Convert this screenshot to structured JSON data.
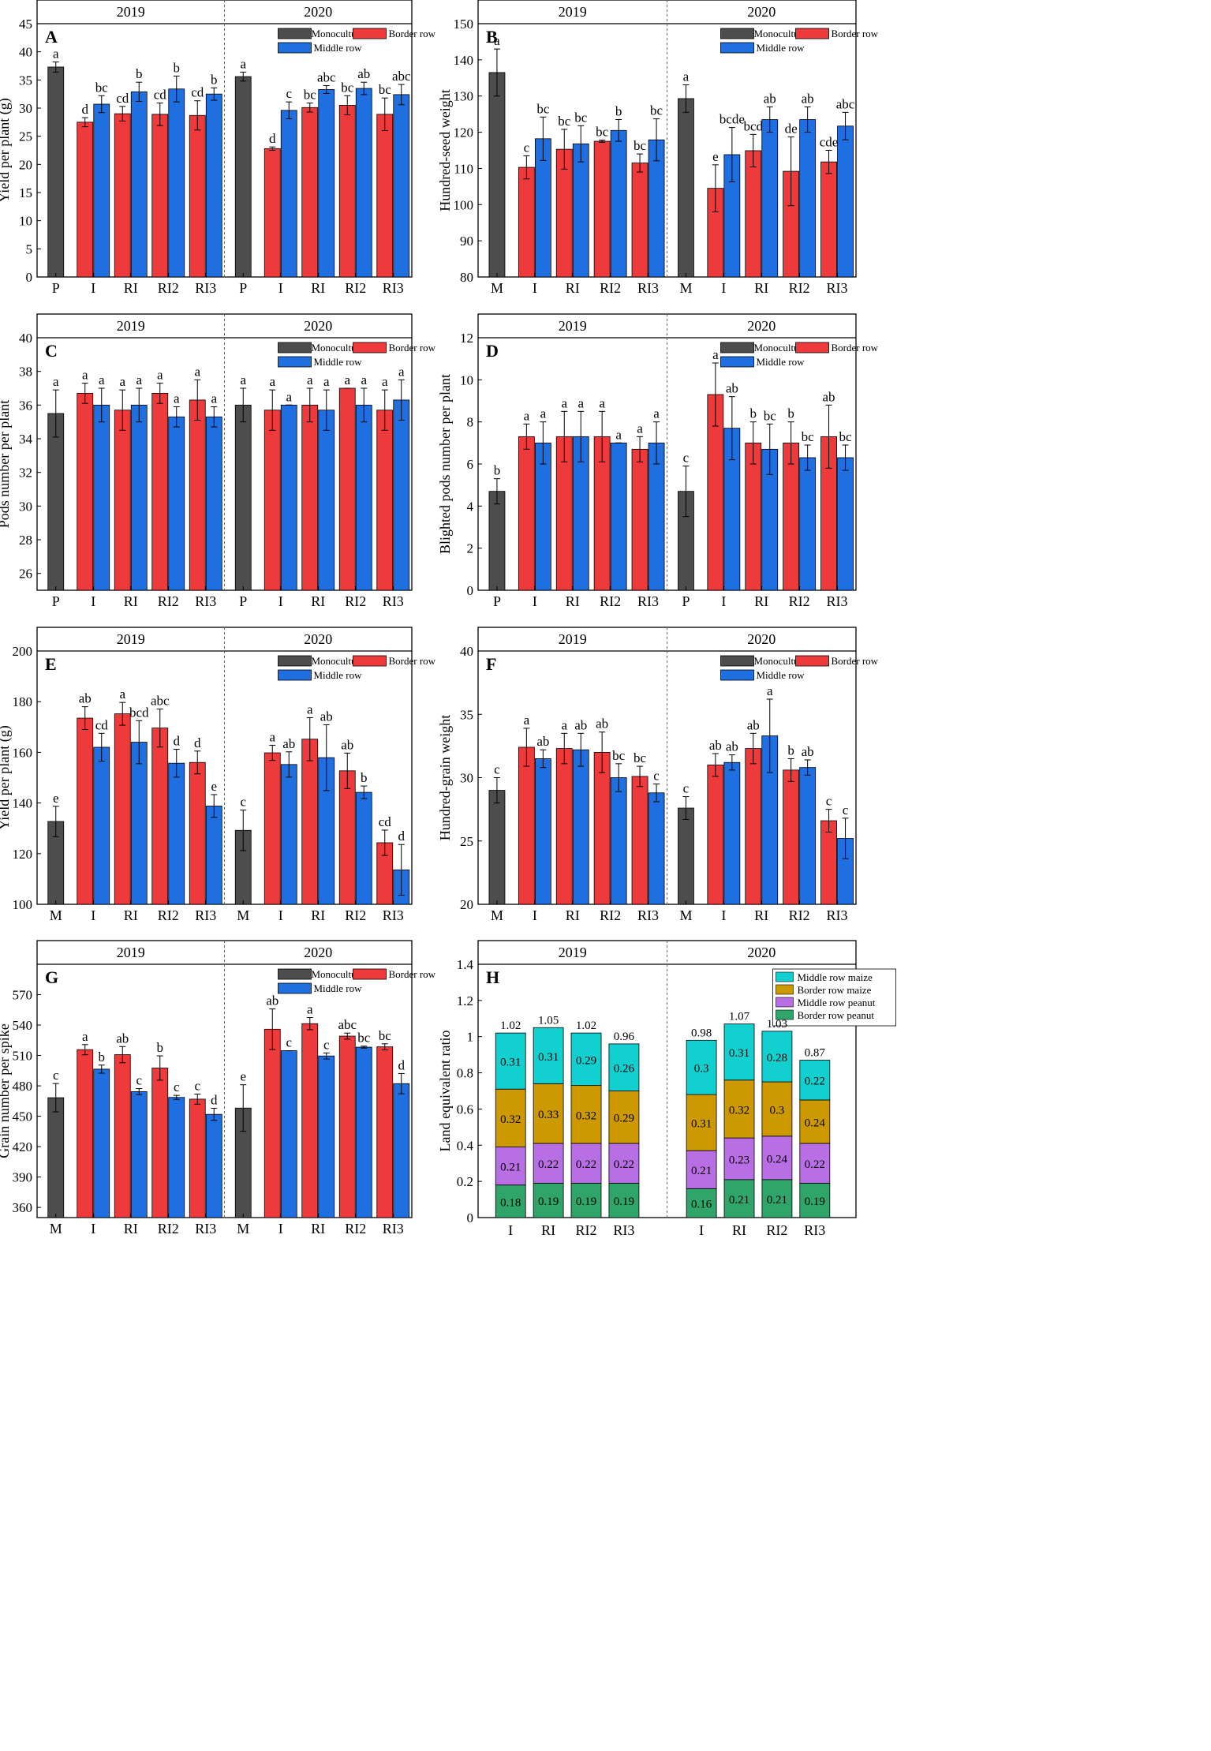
{
  "colors": {
    "monoculture": "#4d4d4d",
    "border": "#ee3a3a",
    "middle": "#1f6fe0",
    "ler_middle_maize": "#11d0cf",
    "ler_border_maize": "#cc9900",
    "ler_middle_peanut": "#b86fe3",
    "ler_border_peanut": "#2fa56a"
  },
  "legend_labels": {
    "monoculture": "Monoculture",
    "border": "Border row",
    "middle": "Middle row"
  },
  "chart_data": [
    {
      "panel": "A",
      "type": "bar",
      "ylabel": "Yield per plant (g)",
      "ylim": [
        0,
        45
      ],
      "yticks": [
        0,
        5,
        10,
        15,
        20,
        25,
        30,
        35,
        40,
        45
      ],
      "years": [
        "2019",
        "2020"
      ],
      "categories": [
        "P",
        "I",
        "RI",
        "RI2",
        "RI3"
      ],
      "data": {
        "2019": {
          "mono": {
            "v": 37.3,
            "e": 0.9,
            "l": "a"
          },
          "border": [
            {
              "v": 27.5,
              "e": 0.8,
              "l": "d"
            },
            {
              "v": 29.0,
              "e": 1.3,
              "l": "cd"
            },
            {
              "v": 28.9,
              "e": 2.0,
              "l": "cd"
            },
            {
              "v": 28.7,
              "e": 2.6,
              "l": "cd"
            }
          ],
          "middle": [
            {
              "v": 30.7,
              "e": 1.5,
              "l": "bc"
            },
            {
              "v": 32.9,
              "e": 1.7,
              "l": "b"
            },
            {
              "v": 33.4,
              "e": 2.3,
              "l": "b"
            },
            {
              "v": 32.5,
              "e": 1.1,
              "l": "b"
            }
          ]
        },
        "2020": {
          "mono": {
            "v": 35.6,
            "e": 0.8,
            "l": "a"
          },
          "border": [
            {
              "v": 22.8,
              "e": 0.3,
              "l": "d"
            },
            {
              "v": 30.1,
              "e": 0.8,
              "l": "bc"
            },
            {
              "v": 30.5,
              "e": 1.7,
              "l": "bc"
            },
            {
              "v": 28.9,
              "e": 2.9,
              "l": "bc"
            }
          ],
          "middle": [
            {
              "v": 29.6,
              "e": 1.5,
              "l": "c"
            },
            {
              "v": 33.3,
              "e": 0.7,
              "l": "abc"
            },
            {
              "v": 33.5,
              "e": 1.1,
              "l": "ab"
            },
            {
              "v": 32.4,
              "e": 1.8,
              "l": "abc"
            }
          ]
        }
      }
    },
    {
      "panel": "B",
      "type": "bar",
      "ylabel": "Hundred-seed weight",
      "ylim": [
        80,
        150
      ],
      "yticks": [
        80,
        90,
        100,
        110,
        120,
        130,
        140,
        150
      ],
      "years": [
        "2019",
        "2020"
      ],
      "categories": [
        "M",
        "I",
        "RI",
        "RI2",
        "RI3"
      ],
      "data": {
        "2019": {
          "mono": {
            "v": 136.5,
            "e": 6.5,
            "l": "a"
          },
          "border": [
            {
              "v": 110.3,
              "e": 3.2,
              "l": "c"
            },
            {
              "v": 115.3,
              "e": 5.5,
              "l": "bc"
            },
            {
              "v": 117.5,
              "e": 0.3,
              "l": "bc"
            },
            {
              "v": 111.5,
              "e": 2.5,
              "l": "bc"
            }
          ],
          "middle": [
            {
              "v": 118.2,
              "e": 6.0,
              "l": "bc"
            },
            {
              "v": 116.8,
              "e": 5.0,
              "l": "bc"
            },
            {
              "v": 120.5,
              "e": 3.0,
              "l": "b"
            },
            {
              "v": 117.9,
              "e": 5.8,
              "l": "bc"
            }
          ]
        },
        "2020": {
          "mono": {
            "v": 129.3,
            "e": 3.8,
            "l": "a"
          },
          "border": [
            {
              "v": 104.5,
              "e": 6.5,
              "l": "e"
            },
            {
              "v": 114.9,
              "e": 4.5,
              "l": "bcd"
            },
            {
              "v": 109.2,
              "e": 9.5,
              "l": "de"
            },
            {
              "v": 111.8,
              "e": 3.2,
              "l": "cde"
            }
          ],
          "middle": [
            {
              "v": 113.8,
              "e": 7.5,
              "l": "bcde"
            },
            {
              "v": 123.5,
              "e": 3.5,
              "l": "ab"
            },
            {
              "v": 123.5,
              "e": 3.5,
              "l": "ab"
            },
            {
              "v": 121.7,
              "e": 3.8,
              "l": "abc"
            }
          ]
        }
      }
    },
    {
      "panel": "C",
      "type": "bar",
      "ylabel": "Pods number per plant",
      "ylim": [
        25,
        40
      ],
      "yticks": [
        26,
        28,
        30,
        32,
        34,
        36,
        38,
        40
      ],
      "years": [
        "2019",
        "2020"
      ],
      "categories": [
        "P",
        "I",
        "RI",
        "RI2",
        "RI3"
      ],
      "data": {
        "2019": {
          "mono": {
            "v": 35.5,
            "e": 1.4,
            "l": "a"
          },
          "border": [
            {
              "v": 36.7,
              "e": 0.6,
              "l": "a"
            },
            {
              "v": 35.7,
              "e": 1.2,
              "l": "a"
            },
            {
              "v": 36.7,
              "e": 0.6,
              "l": "a"
            },
            {
              "v": 36.3,
              "e": 1.2,
              "l": "a"
            }
          ],
          "middle": [
            {
              "v": 36.0,
              "e": 1.0,
              "l": "a"
            },
            {
              "v": 36.0,
              "e": 1.0,
              "l": "a"
            },
            {
              "v": 35.3,
              "e": 0.6,
              "l": "a"
            },
            {
              "v": 35.3,
              "e": 0.6,
              "l": "a"
            }
          ]
        },
        "2020": {
          "mono": {
            "v": 36.0,
            "e": 1.0,
            "l": "a"
          },
          "border": [
            {
              "v": 35.7,
              "e": 1.2,
              "l": "a"
            },
            {
              "v": 36.0,
              "e": 1.0,
              "l": "a"
            },
            {
              "v": 37.0,
              "e": 0.0,
              "l": "a"
            },
            {
              "v": 35.7,
              "e": 1.2,
              "l": "a"
            }
          ],
          "middle": [
            {
              "v": 36.0,
              "e": 0.0,
              "l": "a"
            },
            {
              "v": 35.7,
              "e": 1.2,
              "l": "a"
            },
            {
              "v": 36.0,
              "e": 1.0,
              "l": "a"
            },
            {
              "v": 36.3,
              "e": 1.2,
              "l": "a"
            }
          ]
        }
      }
    },
    {
      "panel": "D",
      "type": "bar",
      "ylabel": "Blighted pods number per plant",
      "ylim": [
        0,
        12
      ],
      "yticks": [
        0,
        2,
        4,
        6,
        8,
        10,
        12
      ],
      "years": [
        "2019",
        "2020"
      ],
      "categories": [
        "P",
        "I",
        "RI",
        "RI2",
        "RI3"
      ],
      "data": {
        "2019": {
          "mono": {
            "v": 4.7,
            "e": 0.6,
            "l": "b"
          },
          "border": [
            {
              "v": 7.3,
              "e": 0.6,
              "l": "a"
            },
            {
              "v": 7.3,
              "e": 1.2,
              "l": "a"
            },
            {
              "v": 7.3,
              "e": 1.2,
              "l": "a"
            },
            {
              "v": 6.7,
              "e": 0.6,
              "l": "a"
            }
          ],
          "middle": [
            {
              "v": 7.0,
              "e": 1.0,
              "l": "a"
            },
            {
              "v": 7.3,
              "e": 1.2,
              "l": "a"
            },
            {
              "v": 7.0,
              "e": 0.0,
              "l": "a"
            },
            {
              "v": 7.0,
              "e": 1.0,
              "l": "a"
            }
          ]
        },
        "2020": {
          "mono": {
            "v": 4.7,
            "e": 1.2,
            "l": "c"
          },
          "border": [
            {
              "v": 9.3,
              "e": 1.5,
              "l": "a"
            },
            {
              "v": 7.0,
              "e": 1.0,
              "l": "b"
            },
            {
              "v": 7.0,
              "e": 1.0,
              "l": "b"
            },
            {
              "v": 7.3,
              "e": 1.5,
              "l": "ab"
            }
          ],
          "middle": [
            {
              "v": 7.7,
              "e": 1.5,
              "l": "ab"
            },
            {
              "v": 6.7,
              "e": 1.2,
              "l": "bc"
            },
            {
              "v": 6.3,
              "e": 0.6,
              "l": "bc"
            },
            {
              "v": 6.3,
              "e": 0.6,
              "l": "bc"
            }
          ]
        }
      }
    },
    {
      "panel": "E",
      "type": "bar",
      "ylabel": "Yield per plant (g)",
      "ylim": [
        100,
        200
      ],
      "yticks": [
        100,
        120,
        140,
        160,
        180,
        200
      ],
      "years": [
        "2019",
        "2020"
      ],
      "categories": [
        "M",
        "I",
        "RI",
        "RI2",
        "RI3"
      ],
      "data": {
        "2019": {
          "mono": {
            "v": 132.7,
            "e": 6.0,
            "l": "e"
          },
          "border": [
            {
              "v": 173.5,
              "e": 4.5,
              "l": "ab"
            },
            {
              "v": 175.2,
              "e": 4.5,
              "l": "a"
            },
            {
              "v": 169.6,
              "e": 7.5,
              "l": "abc"
            },
            {
              "v": 156.0,
              "e": 4.5,
              "l": "d"
            }
          ],
          "middle": [
            {
              "v": 162.0,
              "e": 5.5,
              "l": "cd"
            },
            {
              "v": 164.0,
              "e": 8.5,
              "l": "bcd"
            },
            {
              "v": 155.7,
              "e": 5.5,
              "l": "d"
            },
            {
              "v": 138.8,
              "e": 4.5,
              "l": "e"
            }
          ]
        },
        "2020": {
          "mono": {
            "v": 129.2,
            "e": 8.0,
            "l": "c"
          },
          "border": [
            {
              "v": 159.8,
              "e": 3.0,
              "l": "a"
            },
            {
              "v": 165.2,
              "e": 8.5,
              "l": "a"
            },
            {
              "v": 152.7,
              "e": 7.0,
              "l": "ab"
            },
            {
              "v": 124.3,
              "e": 5.0,
              "l": "cd"
            }
          ],
          "middle": [
            {
              "v": 155.2,
              "e": 5.0,
              "l": "ab"
            },
            {
              "v": 157.9,
              "e": 13.0,
              "l": "ab"
            },
            {
              "v": 144.2,
              "e": 2.5,
              "l": "b"
            },
            {
              "v": 113.6,
              "e": 10.0,
              "l": "d"
            }
          ]
        }
      }
    },
    {
      "panel": "F",
      "type": "bar",
      "ylabel": "Hundred-grain weight",
      "ylim": [
        20,
        40
      ],
      "yticks": [
        20,
        25,
        30,
        35,
        40
      ],
      "years": [
        "2019",
        "2020"
      ],
      "categories": [
        "M",
        "I",
        "RI",
        "RI2",
        "RI3"
      ],
      "data": {
        "2019": {
          "mono": {
            "v": 29.0,
            "e": 1.0,
            "l": "c"
          },
          "border": [
            {
              "v": 32.4,
              "e": 1.5,
              "l": "a"
            },
            {
              "v": 32.3,
              "e": 1.2,
              "l": "a"
            },
            {
              "v": 32.0,
              "e": 1.6,
              "l": "ab"
            },
            {
              "v": 30.1,
              "e": 0.8,
              "l": "bc"
            }
          ],
          "middle": [
            {
              "v": 31.5,
              "e": 0.7,
              "l": "ab"
            },
            {
              "v": 32.2,
              "e": 1.3,
              "l": "ab"
            },
            {
              "v": 30.0,
              "e": 1.1,
              "l": "bc"
            },
            {
              "v": 28.8,
              "e": 0.7,
              "l": "c"
            }
          ]
        },
        "2020": {
          "mono": {
            "v": 27.6,
            "e": 0.9,
            "l": "c"
          },
          "border": [
            {
              "v": 31.0,
              "e": 0.9,
              "l": "ab"
            },
            {
              "v": 32.3,
              "e": 1.2,
              "l": "ab"
            },
            {
              "v": 30.6,
              "e": 0.9,
              "l": "b"
            },
            {
              "v": 26.6,
              "e": 0.9,
              "l": "c"
            }
          ],
          "middle": [
            {
              "v": 31.2,
              "e": 0.6,
              "l": "ab"
            },
            {
              "v": 33.3,
              "e": 2.9,
              "l": "a"
            },
            {
              "v": 30.8,
              "e": 0.6,
              "l": "ab"
            },
            {
              "v": 25.2,
              "e": 1.6,
              "l": "c"
            }
          ]
        }
      }
    },
    {
      "panel": "G",
      "type": "bar",
      "ylabel": "Grain number per spike",
      "ylim": [
        350,
        600
      ],
      "yticks": [
        360,
        390,
        420,
        450,
        480,
        510,
        540,
        570
      ],
      "years": [
        "2019",
        "2020"
      ],
      "categories": [
        "M",
        "I",
        "RI",
        "RI2",
        "RI3"
      ],
      "data": {
        "2019": {
          "mono": {
            "v": 468.3,
            "e": 14,
            "l": "c"
          },
          "border": [
            {
              "v": 515.7,
              "e": 5,
              "l": "a"
            },
            {
              "v": 510.8,
              "e": 8,
              "l": "ab"
            },
            {
              "v": 497.6,
              "e": 12,
              "l": "b"
            },
            {
              "v": 466.9,
              "e": 5,
              "l": "c"
            }
          ],
          "middle": [
            {
              "v": 496.5,
              "e": 4,
              "l": "b"
            },
            {
              "v": 474.3,
              "e": 3,
              "l": "c"
            },
            {
              "v": 468.6,
              "e": 2,
              "l": "c"
            },
            {
              "v": 451.9,
              "e": 6,
              "l": "d"
            }
          ]
        },
        "2020": {
          "mono": {
            "v": 458.1,
            "e": 23,
            "l": "e"
          },
          "border": [
            {
              "v": 535.9,
              "e": 20,
              "l": "ab"
            },
            {
              "v": 541.4,
              "e": 6,
              "l": "a"
            },
            {
              "v": 529.1,
              "e": 3,
              "l": "abc"
            },
            {
              "v": 518.5,
              "e": 3,
              "l": "bc"
            }
          ],
          "middle": [
            {
              "v": 514.7,
              "e": 0,
              "l": "c"
            },
            {
              "v": 509.5,
              "e": 3,
              "l": "c"
            },
            {
              "v": 518.2,
              "e": 1,
              "l": "bc"
            },
            {
              "v": 482.2,
              "e": 10,
              "l": "d"
            }
          ]
        }
      }
    },
    {
      "panel": "H",
      "type": "stacked-bar",
      "ylabel": "Land equivalent ratio",
      "ylim": [
        0,
        1.4
      ],
      "yticks": [
        "0",
        "0.2",
        "0.4",
        "0.6",
        "0.8",
        "1",
        "1.2",
        "1.4"
      ],
      "years": [
        "2019",
        "2020"
      ],
      "categories": [
        "I",
        "RI",
        "RI2",
        "RI3"
      ],
      "legend": [
        "Middle row maize",
        "Border row maize",
        "Middle row peanut",
        "Border row peanut"
      ],
      "data": {
        "2019": {
          "totals": [
            "1.02",
            "1.05",
            "1.02",
            "0.96"
          ],
          "border_peanut": [
            "0.18",
            "0.19",
            "0.19",
            "0.19"
          ],
          "middle_peanut": [
            "0.21",
            "0.22",
            "0.22",
            "0.22"
          ],
          "border_maize": [
            "0.32",
            "0.33",
            "0.32",
            "0.29"
          ],
          "middle_maize": [
            "0.31",
            "0.31",
            "0.29",
            "0.26"
          ]
        },
        "2020": {
          "totals": [
            "0.98",
            "1.07",
            "1.03",
            "0.87"
          ],
          "border_peanut": [
            "0.16",
            "0.21",
            "0.21",
            "0.19"
          ],
          "middle_peanut": [
            "0.21",
            "0.23",
            "0.24",
            "0.22"
          ],
          "border_maize": [
            "0.31",
            "0.32",
            "0.3",
            "0.24"
          ],
          "middle_maize": [
            "0.3",
            "0.31",
            "0.28",
            "0.22"
          ]
        }
      }
    }
  ]
}
